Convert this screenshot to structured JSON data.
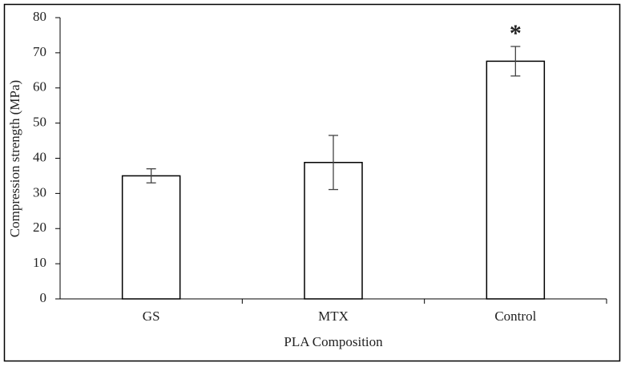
{
  "chart_data": {
    "type": "bar",
    "categories": [
      "GS",
      "MTX",
      "Control"
    ],
    "values": [
      35,
      38.8,
      67.6
    ],
    "errors": [
      2,
      7.7,
      4.2
    ],
    "color": "#ffffff",
    "edge_color": "#000000",
    "xlabel": "PLA Composition",
    "ylabel": "Compression strength (MPa)",
    "ylim": [
      0,
      80
    ],
    "yticks": [
      0,
      10,
      20,
      30,
      40,
      50,
      60,
      70,
      80
    ],
    "grid": false,
    "annotation": {
      "text": "*",
      "category": "Control"
    }
  }
}
